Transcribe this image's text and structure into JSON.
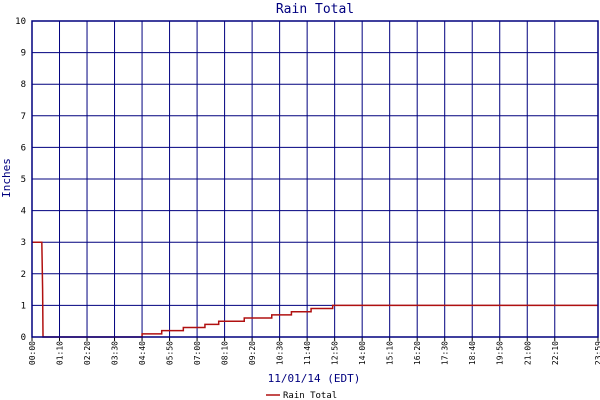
{
  "chart_data": {
    "type": "line",
    "title": "Rain Total",
    "xlabel": "11/01/14 (EDT)",
    "ylabel": "Inches",
    "ylim": [
      0,
      10
    ],
    "yticks": [
      "0",
      "1",
      "2",
      "3",
      "4",
      "5",
      "6",
      "7",
      "8",
      "9",
      "10"
    ],
    "xlim": [
      0,
      1440
    ],
    "xticks": [
      {
        "t": 0,
        "label": "00:00"
      },
      {
        "t": 70,
        "label": "01:10"
      },
      {
        "t": 140,
        "label": "02:20"
      },
      {
        "t": 210,
        "label": "03:30"
      },
      {
        "t": 280,
        "label": "04:40"
      },
      {
        "t": 350,
        "label": "05:50"
      },
      {
        "t": 420,
        "label": "07:00"
      },
      {
        "t": 490,
        "label": "08:10"
      },
      {
        "t": 560,
        "label": "09:20"
      },
      {
        "t": 630,
        "label": "10:30"
      },
      {
        "t": 700,
        "label": "11:40"
      },
      {
        "t": 770,
        "label": "12:50"
      },
      {
        "t": 840,
        "label": "14:00"
      },
      {
        "t": 910,
        "label": "15:10"
      },
      {
        "t": 980,
        "label": "16:20"
      },
      {
        "t": 1050,
        "label": "17:30"
      },
      {
        "t": 1120,
        "label": "18:40"
      },
      {
        "t": 1190,
        "label": "19:50"
      },
      {
        "t": 1260,
        "label": "21:00"
      },
      {
        "t": 1330,
        "label": "22:10"
      },
      {
        "t": 1440,
        "label": "23:59"
      }
    ],
    "grid": true,
    "legend_position": "bottom",
    "series": [
      {
        "name": "Rain Total",
        "color": "#b01010",
        "step": true,
        "points": [
          [
            0,
            3.0
          ],
          [
            25,
            3.0
          ],
          [
            27,
            1.5
          ],
          [
            28,
            0.0
          ],
          [
            280,
            0.0
          ],
          [
            280,
            0.1
          ],
          [
            330,
            0.1
          ],
          [
            330,
            0.2
          ],
          [
            385,
            0.2
          ],
          [
            385,
            0.3
          ],
          [
            440,
            0.3
          ],
          [
            440,
            0.4
          ],
          [
            475,
            0.4
          ],
          [
            475,
            0.5
          ],
          [
            540,
            0.5
          ],
          [
            540,
            0.6
          ],
          [
            610,
            0.6
          ],
          [
            610,
            0.7
          ],
          [
            660,
            0.7
          ],
          [
            660,
            0.8
          ],
          [
            710,
            0.8
          ],
          [
            710,
            0.9
          ],
          [
            765,
            0.9
          ],
          [
            765,
            1.0
          ],
          [
            1440,
            1.0
          ]
        ]
      }
    ]
  }
}
